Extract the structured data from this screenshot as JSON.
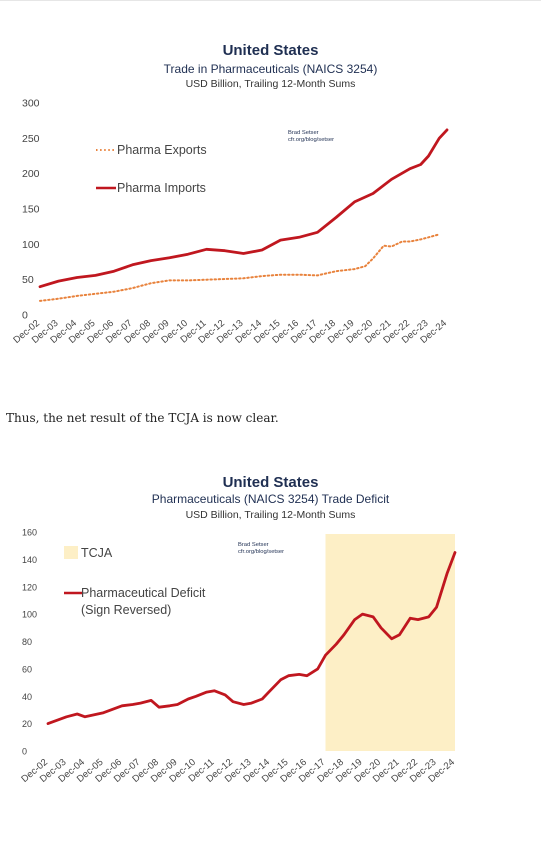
{
  "paragraph": "Thus, the net result of the TCJA is now clear.",
  "chart_data": [
    {
      "type": "line",
      "title": "United States",
      "subtitle": "Trade in Pharmaceuticals (NAICS 3254)",
      "units": "USD Billion, Trailing 12-Month Sums",
      "credit": [
        "Brad Setser",
        "cfr.org/blog/setser"
      ],
      "ylim": [
        0,
        300
      ],
      "yticks": [
        0,
        50,
        100,
        150,
        200,
        250,
        300
      ],
      "x_range": [
        2002.92,
        2024.92
      ],
      "xtick_labels": [
        "Dec-02",
        "Dec-03",
        "Dec-04",
        "Dec-05",
        "Dec-06",
        "Dec-07",
        "Dec-08",
        "Dec-09",
        "Dec-10",
        "Dec-11",
        "Dec-12",
        "Dec-13",
        "Dec-14",
        "Dec-15",
        "Dec-16",
        "Dec-17",
        "Dec-18",
        "Dec-19",
        "Dec-20",
        "Dec-21",
        "Dec-22",
        "Dec-23",
        "Dec-24"
      ],
      "legend_position": "upper-left",
      "grid": false,
      "series": [
        {
          "name": "Pharma Exports",
          "color": "#e8823c",
          "style": "dotted",
          "x": [
            2002.92,
            2003.92,
            2004.92,
            2005.92,
            2006.92,
            2007.92,
            2008.92,
            2009.92,
            2010.92,
            2011.92,
            2012.92,
            2013.92,
            2014.92,
            2015.92,
            2016.92,
            2017.92,
            2018.92,
            2019.92,
            2020.5,
            2020.92,
            2021.5,
            2021.92,
            2022.5,
            2022.92,
            2023.5,
            2023.92,
            2024.5
          ],
          "values": [
            20,
            23,
            27,
            30,
            33,
            38,
            45,
            49,
            49,
            50,
            51,
            52,
            55,
            57,
            57,
            56,
            62,
            65,
            69,
            80,
            98,
            97,
            104,
            104,
            107,
            110,
            114
          ]
        },
        {
          "name": "Pharma Imports",
          "color": "#c0171f",
          "style": "solid",
          "x": [
            2002.92,
            2003.92,
            2004.92,
            2005.92,
            2006.92,
            2007.92,
            2008.92,
            2009.92,
            2010.92,
            2011.92,
            2012.92,
            2013.92,
            2014.92,
            2015.92,
            2016.92,
            2017.92,
            2018.92,
            2019.92,
            2020.92,
            2021.92,
            2022.92,
            2023.5,
            2023.92,
            2024.5,
            2024.92
          ],
          "values": [
            40,
            48,
            53,
            56,
            62,
            71,
            77,
            81,
            86,
            93,
            91,
            87,
            92,
            106,
            110,
            117,
            138,
            160,
            172,
            192,
            207,
            213,
            225,
            250,
            262
          ]
        }
      ]
    },
    {
      "type": "line",
      "title": "United States",
      "subtitle": "Pharmaceuticals (NAICS 3254) Trade Deficit",
      "units": "USD Billion, Trailing 12-Month Sums",
      "credit": [
        "Brad Setser",
        "cfr.org/blog/setser"
      ],
      "ylim": [
        0,
        160
      ],
      "yticks": [
        0,
        20,
        40,
        60,
        80,
        100,
        120,
        140,
        160
      ],
      "x_range": [
        2002.92,
        2024.92
      ],
      "xtick_labels": [
        "Dec-02",
        "Dec-03",
        "Dec-04",
        "Dec-05",
        "Dec-06",
        "Dec-07",
        "Dec-08",
        "Dec-09",
        "Dec-10",
        "Dec-11",
        "Dec-12",
        "Dec-13",
        "Dec-14",
        "Dec-15",
        "Dec-16",
        "Dec-17",
        "Dec-18",
        "Dec-19",
        "Dec-20",
        "Dec-21",
        "Dec-22",
        "Dec-23",
        "Dec-24"
      ],
      "legend_position": "upper-left",
      "grid": false,
      "shaded_region": {
        "label": "TCJA",
        "x_start": 2017.92,
        "x_end": 2024.92,
        "color": "#fdefc6"
      },
      "series": [
        {
          "name": "Pharmaceutical Deficit\n(Sign Reversed)",
          "color": "#c0171f",
          "style": "solid",
          "x": [
            2002.92,
            2003.92,
            2004.5,
            2004.92,
            2005.92,
            2006.92,
            2007.5,
            2007.92,
            2008.5,
            2008.92,
            2009.5,
            2009.92,
            2010.5,
            2010.92,
            2011.5,
            2011.92,
            2012.5,
            2012.92,
            2013.5,
            2013.92,
            2014.5,
            2014.92,
            2015.5,
            2015.92,
            2016.5,
            2016.92,
            2017.5,
            2017.92,
            2018.5,
            2018.92,
            2019.5,
            2019.92,
            2020.5,
            2020.92,
            2021.5,
            2021.92,
            2022.5,
            2022.92,
            2023.5,
            2023.92,
            2024.5,
            2024.92
          ],
          "values": [
            20,
            25,
            27,
            25,
            28,
            33,
            34,
            35,
            37,
            32,
            33,
            34,
            38,
            40,
            43,
            44,
            41,
            36,
            34,
            35,
            38,
            44,
            52,
            55,
            56,
            55,
            60,
            70,
            78,
            85,
            96,
            100,
            98,
            90,
            82,
            85,
            97,
            96,
            98,
            105,
            130,
            145
          ]
        }
      ]
    }
  ]
}
